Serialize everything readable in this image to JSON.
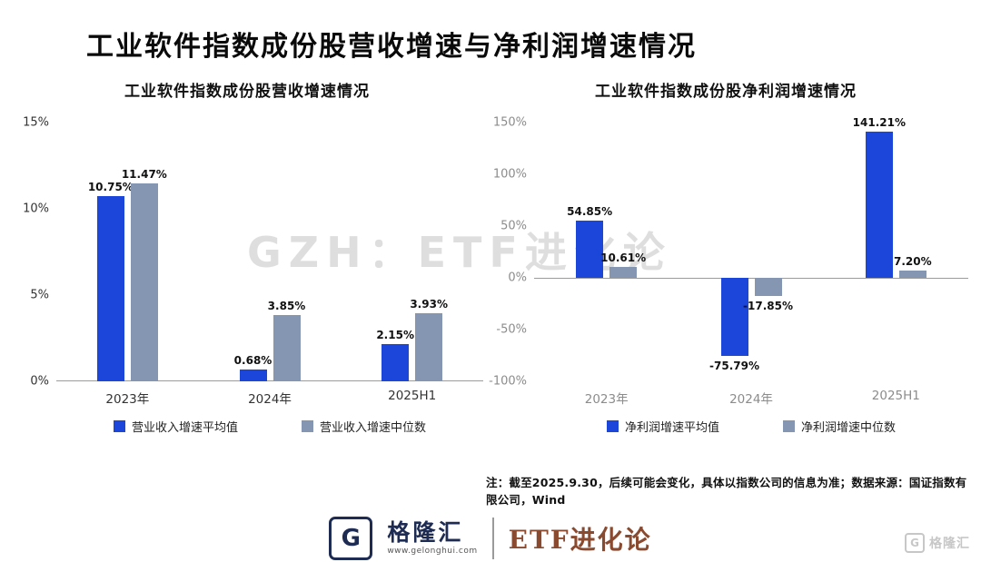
{
  "page_title": "工业软件指数成份股营收增速与净利润增速情况",
  "watermark": "GZH：ETF进化论",
  "colors": {
    "series_avg": "#1c45d9",
    "series_median": "#8496b2",
    "brand_navy": "#1e2c54",
    "brand_brown": "#8a4a2f"
  },
  "chart_data": [
    {
      "type": "bar",
      "title": "工业软件指数成份股营收增速情况",
      "categories": [
        "2023年",
        "2024年",
        "2025H1"
      ],
      "series": [
        {
          "name": "营业收入增速平均值",
          "values": [
            10.75,
            0.68,
            2.15
          ]
        },
        {
          "name": "营业收入增速中位数",
          "values": [
            11.47,
            3.85,
            3.93
          ]
        }
      ],
      "ylim": [
        0,
        15
      ],
      "yticks": [
        0,
        5,
        10,
        15
      ],
      "tick_suffix": "%",
      "axis_text_color": "#333333",
      "grid": false,
      "legend_position": "bottom"
    },
    {
      "type": "bar",
      "title": "工业软件指数成份股净利润增速情况",
      "categories": [
        "2023年",
        "2024年",
        "2025H1"
      ],
      "series": [
        {
          "name": "净利润增速平均值",
          "values": [
            54.85,
            -75.79,
            141.21
          ]
        },
        {
          "name": "净利润增速中位数",
          "values": [
            10.61,
            -17.85,
            7.2
          ]
        }
      ],
      "ylim": [
        -100,
        150
      ],
      "yticks": [
        -100,
        -50,
        0,
        50,
        100,
        150
      ],
      "tick_suffix": "%",
      "axis_text_color": "#8c8c8c",
      "grid": false,
      "legend_position": "bottom"
    }
  ],
  "footer": {
    "note": "注：截至2025.9.30，后续可能会变化，具体以指数公司的信息为准；数据来源：国证指数有限公司，Wind",
    "brand": {
      "logo_letter": "G",
      "name": "格隆汇",
      "url": "www.gelonghui.com",
      "sub": "ETF进化论"
    },
    "corner_watermark": "格隆汇"
  }
}
